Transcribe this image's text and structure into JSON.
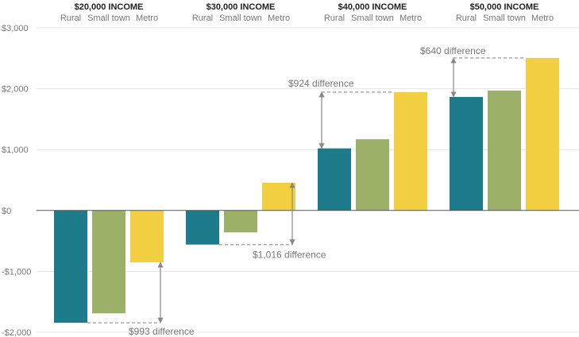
{
  "chart_data": {
    "type": "bar",
    "title": "",
    "xlabel": "",
    "ylabel": "",
    "ylim": [
      -2000,
      3000
    ],
    "y_ticks": [
      {
        "value": -2000,
        "label": "-$2,000"
      },
      {
        "value": -1000,
        "label": "-$1,000"
      },
      {
        "value": 0,
        "label": "$0"
      },
      {
        "value": 1000,
        "label": "$1,000"
      },
      {
        "value": 2000,
        "label": "$2,000"
      },
      {
        "value": 3000,
        "label": "$3,000"
      }
    ],
    "categories": [
      "Rural",
      "Small town",
      "Metro"
    ],
    "colors": {
      "Rural": "#1e7b8c",
      "Small town": "#9cb067",
      "Metro": "#f2cf41"
    },
    "grid": true,
    "groups": [
      {
        "title": "$20,000 INCOME",
        "values": [
          -1845,
          -1690,
          -852
        ],
        "annotation": "$993 difference"
      },
      {
        "title": "$30,000 INCOME",
        "values": [
          -560,
          -360,
          456
        ],
        "annotation": "$1,016 difference"
      },
      {
        "title": "$40,000 INCOME",
        "values": [
          1020,
          1170,
          1944
        ],
        "annotation": "$924 difference"
      },
      {
        "title": "$50,000 INCOME",
        "values": [
          1865,
          1970,
          2505
        ],
        "annotation": "$640 difference"
      }
    ]
  }
}
